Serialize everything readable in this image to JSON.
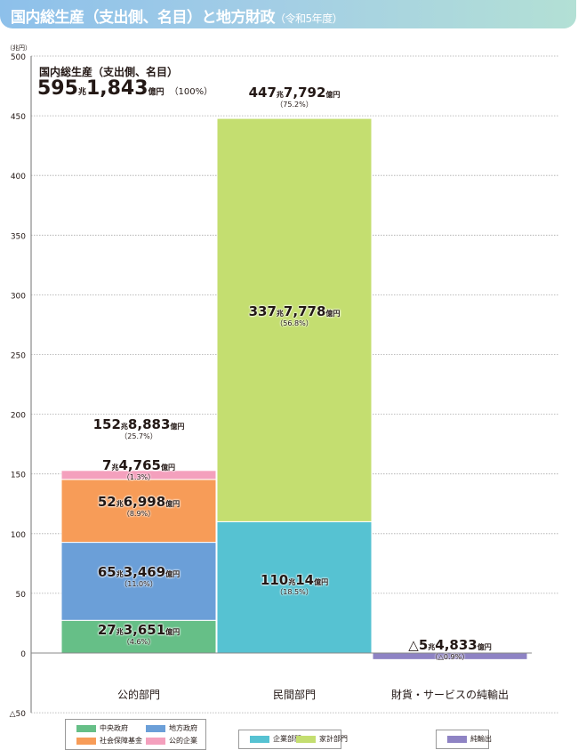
{
  "header": {
    "title": "国内総生産（支出側、名目）と地方財政",
    "subtitle": "（令和5年度）"
  },
  "total": {
    "label": "国内総生産（支出側、名目）",
    "cho": "595",
    "cho_unit": "兆",
    "oku": "1,843",
    "oku_unit": "億円",
    "pct": "（100%）"
  },
  "colors": {
    "central": "#66bf87",
    "local": "#6b9fd8",
    "social": "#f79c58",
    "public_corp": "#f4a0bd",
    "corporate": "#56c2d2",
    "household": "#c4de70",
    "net_export": "#8e83c4",
    "grid": "#aaaaaa",
    "axis": "#888888"
  },
  "chart_data": {
    "type": "bar",
    "stacked": true,
    "title": "国内総生産（支出側、名目）と地方財政（令和5年度）",
    "ylabel": "（兆円）",
    "ylim": [
      -50,
      500
    ],
    "yticks": [
      -50,
      0,
      50,
      100,
      150,
      200,
      250,
      300,
      350,
      400,
      450,
      500
    ],
    "ytick_labels": [
      "△50",
      "0",
      "50",
      "100",
      "150",
      "200",
      "250",
      "300",
      "350",
      "400",
      "450",
      "500"
    ],
    "grid": true,
    "categories": [
      "公的部門",
      "民間部門",
      "財貨・サービスの純輸出"
    ],
    "series": [
      {
        "name": "中央政府",
        "key": "central",
        "category": 0,
        "value": 27.3651,
        "label_cho": "27",
        "label_oku": "3,651",
        "pct": "（4.6%）"
      },
      {
        "name": "地方政府",
        "key": "local",
        "category": 0,
        "value": 65.3469,
        "label_cho": "65",
        "label_oku": "3,469",
        "pct": "（11.0%）"
      },
      {
        "name": "社会保障基金",
        "key": "social",
        "category": 0,
        "value": 52.6998,
        "label_cho": "52",
        "label_oku": "6,998",
        "pct": "（8.9%）"
      },
      {
        "name": "公的企業",
        "key": "public_corp",
        "category": 0,
        "value": 7.4765,
        "label_cho": "7",
        "label_oku": "4,765",
        "pct": "（1.3%）"
      },
      {
        "name": "企業部門",
        "key": "corporate",
        "category": 1,
        "value": 110.0014,
        "label_cho": "110",
        "label_oku": "14",
        "pct": "（18.5%）"
      },
      {
        "name": "家計部門",
        "key": "household",
        "category": 1,
        "value": 337.7778,
        "label_cho": "337",
        "label_oku": "7,778",
        "pct": "（56.8%）"
      },
      {
        "name": "純輸出",
        "key": "net_export",
        "category": 2,
        "value": -5.4833,
        "label_cho": "△5",
        "label_oku": "4,833",
        "pct": "（△0.9%）"
      }
    ],
    "category_totals": [
      {
        "category": 0,
        "value": 152.8883,
        "label_cho": "152",
        "label_oku": "8,883",
        "pct": "（25.7%）"
      },
      {
        "category": 1,
        "value": 447.7792,
        "label_cho": "447",
        "label_oku": "7,792",
        "pct": "（75.2%）"
      }
    ],
    "units": {
      "cho": "兆",
      "oku": "億円"
    },
    "legend": [
      {
        "group": 0,
        "items": [
          "中央政府",
          "地方政府",
          "社会保障基金",
          "公的企業"
        ]
      },
      {
        "group": 1,
        "items": [
          "企業部門",
          "家計部門"
        ]
      },
      {
        "group": 2,
        "items": [
          "純輸出"
        ]
      }
    ],
    "legend_placement": "bottom"
  }
}
